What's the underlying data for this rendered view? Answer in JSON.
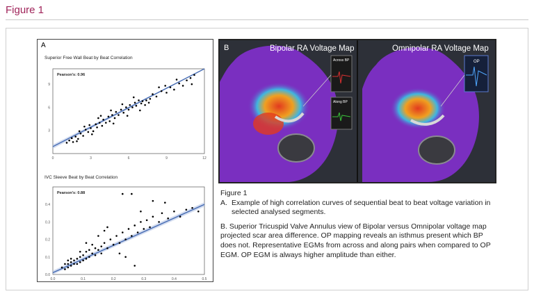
{
  "header": {
    "figure_title": "Figure 1"
  },
  "panel_a": {
    "letter": "A"
  },
  "panel_b": {
    "letter": "B",
    "left_title": "Bipolar RA Voltage Map",
    "right_title": "Omnipolar RA Voltage Map",
    "inset_across": "Across BP",
    "inset_along": "Along BP",
    "inset_op": "OP"
  },
  "caption": {
    "title": "Figure 1",
    "a_label": "A.",
    "a_text": "Example of high correlation curves of sequential beat to beat voltage variation in selected analysed segments.",
    "b_text": "B. Superior Tricuspid Valve Annulus view of Bipolar versus Omnipolar voltage map projected scar area difference. OP mapping reveals an isthmus present which BP does not. Representative EGMs from across and along pairs when compared to OP EGM. OP EGM is always higher amplitude than either."
  },
  "colors": {
    "accent": "#a0245a",
    "regression": "#4a6fb5",
    "band": "#b7c7e6",
    "tissue": "#7a2fc0"
  },
  "chart_data": [
    {
      "type": "scatter",
      "title": "Superior Free Wall Beat by Beat Correlation",
      "annotation": "Pearson's: 0.96",
      "xlabel": "",
      "ylabel": "",
      "xlim": [
        0,
        12
      ],
      "ylim": [
        0,
        11
      ],
      "xticks": [
        "0",
        "3",
        "6",
        "9",
        "12"
      ],
      "yticks": [
        "3",
        "6",
        "9"
      ],
      "fit": {
        "slope": 0.93,
        "intercept": 0.9
      },
      "points": [
        [
          1.1,
          1.4
        ],
        [
          1.3,
          1.7
        ],
        [
          1.6,
          1.5
        ],
        [
          1.8,
          2.2
        ],
        [
          2.0,
          1.9
        ],
        [
          2.2,
          2.6
        ],
        [
          2.4,
          2.3
        ],
        [
          2.6,
          3.1
        ],
        [
          2.8,
          2.8
        ],
        [
          3.0,
          3.3
        ],
        [
          3.2,
          2.9
        ],
        [
          3.4,
          3.8
        ],
        [
          3.5,
          3.4
        ],
        [
          3.7,
          4.0
        ],
        [
          3.9,
          3.6
        ],
        [
          4.0,
          4.4
        ],
        [
          4.2,
          4.0
        ],
        [
          4.4,
          4.8
        ],
        [
          4.5,
          4.2
        ],
        [
          4.7,
          5.0
        ],
        [
          4.9,
          4.6
        ],
        [
          5.0,
          5.4
        ],
        [
          5.2,
          5.0
        ],
        [
          5.4,
          5.7
        ],
        [
          5.6,
          5.3
        ],
        [
          5.8,
          6.0
        ],
        [
          6.0,
          5.7
        ],
        [
          6.1,
          6.3
        ],
        [
          6.3,
          6.0
        ],
        [
          6.5,
          6.6
        ],
        [
          6.6,
          6.2
        ],
        [
          6.8,
          6.9
        ],
        [
          7.0,
          6.5
        ],
        [
          7.1,
          6.8
        ],
        [
          7.3,
          6.3
        ],
        [
          7.4,
          6.9
        ],
        [
          7.6,
          6.6
        ],
        [
          7.7,
          7.1
        ],
        [
          6.9,
          5.6
        ],
        [
          6.4,
          7.3
        ],
        [
          5.5,
          6.4
        ],
        [
          4.6,
          5.6
        ],
        [
          3.8,
          4.9
        ],
        [
          3.1,
          2.5
        ],
        [
          2.5,
          3.5
        ],
        [
          1.9,
          1.6
        ],
        [
          8.2,
          7.4
        ],
        [
          8.6,
          8.1
        ],
        [
          9.0,
          7.9
        ],
        [
          9.3,
          8.6
        ],
        [
          9.6,
          8.3
        ],
        [
          10.0,
          9.1
        ],
        [
          10.3,
          8.8
        ],
        [
          10.6,
          9.5
        ],
        [
          10.9,
          9.8
        ],
        [
          11.2,
          10.2
        ],
        [
          11.0,
          9.0
        ],
        [
          9.8,
          9.6
        ],
        [
          8.9,
          8.8
        ],
        [
          8.4,
          8.6
        ],
        [
          7.9,
          7.7
        ],
        [
          5.9,
          4.9
        ],
        [
          4.8,
          3.9
        ],
        [
          3.6,
          4.6
        ],
        [
          2.9,
          3.7
        ],
        [
          2.1,
          2.9
        ],
        [
          1.5,
          2.0
        ]
      ]
    },
    {
      "type": "scatter",
      "title": "IVC Sleeve Beat by Beat Correlation",
      "annotation": "Pearson's: 0.88",
      "xlabel": "",
      "ylabel": "",
      "xlim": [
        0,
        0.5
      ],
      "ylim": [
        0,
        0.5
      ],
      "xticks": [
        "0.0",
        "0.1",
        "0.2",
        "0.3",
        "0.4",
        "0.5"
      ],
      "yticks": [
        "0.0",
        "0.1",
        "0.2",
        "0.3",
        "0.4"
      ],
      "fit": {
        "slope": 0.78,
        "intercept": 0.01
      },
      "points": [
        [
          0.03,
          0.04
        ],
        [
          0.04,
          0.03
        ],
        [
          0.05,
          0.06
        ],
        [
          0.05,
          0.04
        ],
        [
          0.06,
          0.05
        ],
        [
          0.06,
          0.07
        ],
        [
          0.07,
          0.06
        ],
        [
          0.07,
          0.08
        ],
        [
          0.08,
          0.06
        ],
        [
          0.08,
          0.09
        ],
        [
          0.09,
          0.07
        ],
        [
          0.09,
          0.1
        ],
        [
          0.1,
          0.08
        ],
        [
          0.1,
          0.11
        ],
        [
          0.11,
          0.09
        ],
        [
          0.11,
          0.13
        ],
        [
          0.12,
          0.1
        ],
        [
          0.12,
          0.14
        ],
        [
          0.13,
          0.12
        ],
        [
          0.14,
          0.15
        ],
        [
          0.14,
          0.11
        ],
        [
          0.15,
          0.14
        ],
        [
          0.16,
          0.16
        ],
        [
          0.16,
          0.12
        ],
        [
          0.17,
          0.18
        ],
        [
          0.18,
          0.15
        ],
        [
          0.19,
          0.2
        ],
        [
          0.2,
          0.17
        ],
        [
          0.21,
          0.22
        ],
        [
          0.22,
          0.18
        ],
        [
          0.23,
          0.24
        ],
        [
          0.24,
          0.2
        ],
        [
          0.25,
          0.26
        ],
        [
          0.26,
          0.22
        ],
        [
          0.27,
          0.28
        ],
        [
          0.28,
          0.24
        ],
        [
          0.29,
          0.3
        ],
        [
          0.3,
          0.26
        ],
        [
          0.31,
          0.31
        ],
        [
          0.32,
          0.27
        ],
        [
          0.33,
          0.33
        ],
        [
          0.35,
          0.3
        ],
        [
          0.36,
          0.35
        ],
        [
          0.38,
          0.32
        ],
        [
          0.4,
          0.36
        ],
        [
          0.42,
          0.33
        ],
        [
          0.44,
          0.37
        ],
        [
          0.46,
          0.38
        ],
        [
          0.48,
          0.36
        ],
        [
          0.23,
          0.46
        ],
        [
          0.26,
          0.46
        ],
        [
          0.33,
          0.42
        ],
        [
          0.37,
          0.41
        ],
        [
          0.29,
          0.36
        ],
        [
          0.18,
          0.27
        ],
        [
          0.15,
          0.22
        ],
        [
          0.24,
          0.1
        ],
        [
          0.27,
          0.05
        ],
        [
          0.22,
          0.12
        ],
        [
          0.13,
          0.17
        ],
        [
          0.09,
          0.13
        ],
        [
          0.06,
          0.09
        ],
        [
          0.04,
          0.06
        ],
        [
          0.05,
          0.08
        ],
        [
          0.17,
          0.25
        ],
        [
          0.11,
          0.18
        ]
      ]
    }
  ]
}
